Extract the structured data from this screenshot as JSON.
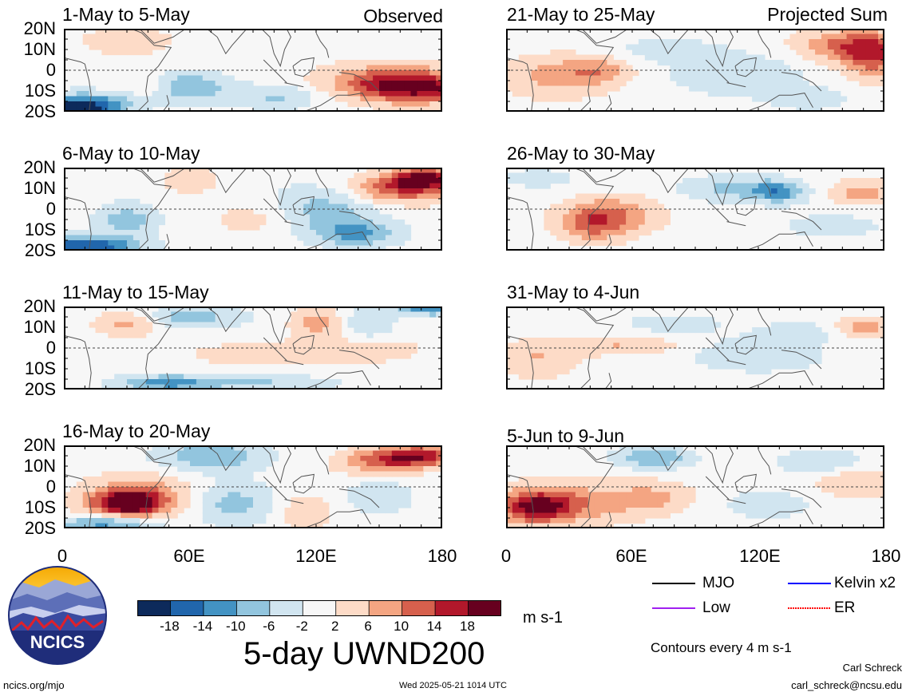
{
  "chart_data": {
    "type": "heatmap",
    "title": "5-day UWND200",
    "units": "m s-1",
    "contour_note": "Contours every 4 m s-1",
    "xlabel": "",
    "ylabel": "",
    "x_ticks": [
      "0",
      "60E",
      "120E",
      "180"
    ],
    "y_ticks": [
      "20N",
      "10N",
      "0",
      "10S",
      "20S"
    ],
    "xlim": [
      0,
      180
    ],
    "ylim": [
      -20,
      20
    ],
    "colorbar": {
      "levels": [
        "-18",
        "-14",
        "-10",
        "-6",
        "-2",
        "2",
        "6",
        "10",
        "14",
        "18"
      ],
      "colors": [
        "#0d2a5b",
        "#2166ac",
        "#4393c3",
        "#92c5de",
        "#d1e5f0",
        "#f7f7f7",
        "#fddbc7",
        "#f4a582",
        "#d6604d",
        "#b2182b",
        "#67001f"
      ]
    },
    "panel_tags": {
      "observed": "Observed",
      "projected": "Projected Sum"
    },
    "panels": [
      {
        "title": "1-May to 5-May",
        "column": "observed",
        "blobs": [
          [
            155,
            -7,
            34,
            9,
            16
          ],
          [
            170,
            -9,
            30,
            7,
            13
          ],
          [
            60,
            -8,
            18,
            7,
            -10
          ],
          [
            100,
            -13,
            20,
            6,
            -6
          ],
          [
            5,
            -19,
            20,
            4,
            -18
          ],
          [
            10,
            -15,
            25,
            5,
            -10
          ],
          [
            30,
            14,
            20,
            6,
            6
          ],
          [
            150,
            -10,
            40,
            8,
            -6
          ],
          [
            40,
            -8,
            10,
            5,
            4
          ]
        ]
      },
      {
        "title": "6-May to 10-May",
        "column": "observed",
        "blobs": [
          [
            160,
            10,
            25,
            7,
            14
          ],
          [
            172,
            15,
            15,
            5,
            16
          ],
          [
            125,
            0,
            25,
            12,
            -8
          ],
          [
            140,
            -12,
            20,
            6,
            -10
          ],
          [
            10,
            -18,
            25,
            5,
            -18
          ],
          [
            30,
            -5,
            15,
            8,
            -8
          ],
          [
            60,
            14,
            12,
            6,
            6
          ],
          [
            90,
            -5,
            20,
            8,
            4
          ]
        ]
      },
      {
        "title": "11-May to 15-May",
        "column": "observed",
        "blobs": [
          [
            175,
            19,
            15,
            3,
            -14
          ],
          [
            145,
            12,
            12,
            8,
            -6
          ],
          [
            30,
            12,
            15,
            6,
            8
          ],
          [
            100,
            -3,
            40,
            6,
            5
          ],
          [
            150,
            0,
            20,
            6,
            4
          ],
          [
            60,
            15,
            25,
            5,
            -8
          ],
          [
            50,
            -17,
            25,
            4,
            -12
          ],
          [
            100,
            -17,
            30,
            4,
            -6
          ],
          [
            120,
            12,
            12,
            8,
            8
          ]
        ]
      },
      {
        "title": "16-May to 20-May",
        "column": "observed",
        "blobs": [
          [
            170,
            15,
            20,
            5,
            16
          ],
          [
            150,
            12,
            20,
            6,
            10
          ],
          [
            35,
            -5,
            25,
            10,
            12
          ],
          [
            30,
            -8,
            15,
            5,
            18
          ],
          [
            70,
            15,
            25,
            7,
            -10
          ],
          [
            20,
            -18,
            25,
            4,
            -12
          ],
          [
            80,
            -8,
            20,
            10,
            -8
          ],
          [
            115,
            -12,
            12,
            8,
            6
          ],
          [
            150,
            -5,
            15,
            8,
            -6
          ]
        ]
      },
      {
        "title": "21-May to 25-May",
        "column": "projected",
        "blobs": [
          [
            165,
            12,
            25,
            8,
            12
          ],
          [
            175,
            5,
            15,
            10,
            10
          ],
          [
            25,
            -3,
            25,
            10,
            8
          ],
          [
            45,
            0,
            15,
            6,
            6
          ],
          [
            110,
            -2,
            30,
            10,
            -6
          ],
          [
            75,
            10,
            25,
            6,
            -4
          ],
          [
            145,
            -14,
            20,
            6,
            -4
          ]
        ]
      },
      {
        "title": "26-May to 30-May",
        "column": "projected",
        "blobs": [
          [
            50,
            -3,
            22,
            9,
            10
          ],
          [
            40,
            -8,
            15,
            8,
            8
          ],
          [
            110,
            10,
            25,
            6,
            -8
          ],
          [
            130,
            8,
            12,
            5,
            -10
          ],
          [
            170,
            8,
            15,
            6,
            8
          ],
          [
            155,
            -8,
            25,
            6,
            -4
          ],
          [
            15,
            15,
            20,
            5,
            -4
          ]
        ]
      },
      {
        "title": "31-May to 4-Jun",
        "column": "projected",
        "blobs": [
          [
            15,
            -5,
            20,
            9,
            6
          ],
          [
            55,
            1,
            30,
            4,
            6
          ],
          [
            170,
            10,
            15,
            5,
            8
          ],
          [
            120,
            -3,
            30,
            8,
            -6
          ],
          [
            140,
            8,
            20,
            5,
            -4
          ],
          [
            80,
            12,
            25,
            5,
            -4
          ]
        ]
      },
      {
        "title": "5-Jun to 9-Jun",
        "column": "projected",
        "blobs": [
          [
            25,
            -8,
            35,
            10,
            10
          ],
          [
            15,
            -10,
            15,
            7,
            14
          ],
          [
            70,
            -5,
            20,
            8,
            6
          ],
          [
            70,
            14,
            18,
            5,
            -10
          ],
          [
            150,
            12,
            20,
            6,
            -6
          ],
          [
            165,
            2,
            20,
            8,
            6
          ],
          [
            125,
            -8,
            25,
            8,
            -4
          ]
        ]
      }
    ],
    "legend": [
      {
        "label": "MJO",
        "color": "#000000"
      },
      {
        "label": "Kelvin x2",
        "color": "#0000ff"
      },
      {
        "label": "Low",
        "color": "#a020f0"
      },
      {
        "label": "ER",
        "color": "#ff0000"
      }
    ]
  },
  "logo_text": "NCICS",
  "footer": {
    "left": "ncics.org/mjo",
    "center": "Wed 2025-05-21 1014 UTC",
    "author": "Carl Schreck",
    "email": "carl_schreck@ncsu.edu"
  }
}
